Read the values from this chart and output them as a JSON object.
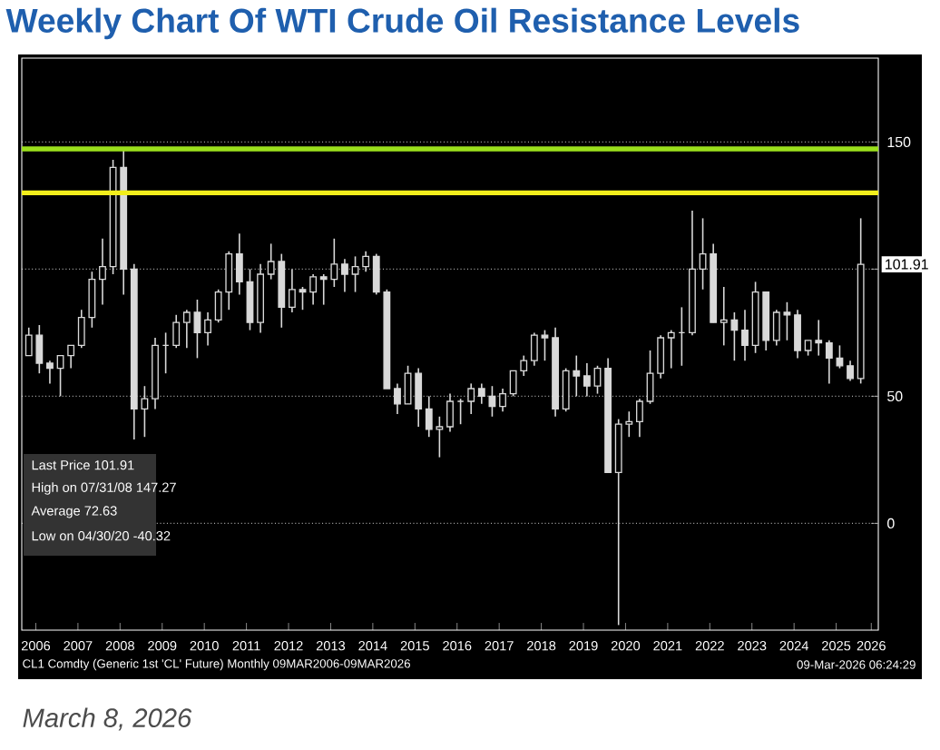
{
  "chart_data": {
    "type": "candlestick",
    "title": "Weekly Chart Of WTI Crude Oil Resistance Levels",
    "x": [
      "2006-05",
      "2006-08",
      "2006-11",
      "2007-02",
      "2007-05",
      "2007-08",
      "2007-11",
      "2008-02",
      "2008-05",
      "2008-08",
      "2008-11",
      "2009-02",
      "2009-05",
      "2009-08",
      "2009-11",
      "2010-02",
      "2010-05",
      "2010-08",
      "2010-11",
      "2011-02",
      "2011-05",
      "2011-08",
      "2011-11",
      "2012-02",
      "2012-05",
      "2012-08",
      "2012-11",
      "2013-02",
      "2013-05",
      "2013-08",
      "2013-11",
      "2014-02",
      "2014-05",
      "2014-08",
      "2014-11",
      "2015-02",
      "2015-05",
      "2015-08",
      "2015-11",
      "2016-02",
      "2016-05",
      "2016-08",
      "2016-11",
      "2017-02",
      "2017-05",
      "2017-08",
      "2017-11",
      "2018-02",
      "2018-05",
      "2018-08",
      "2018-11",
      "2019-02",
      "2019-05",
      "2019-08",
      "2019-11",
      "2020-02",
      "2020-05",
      "2020-08",
      "2020-11",
      "2021-02",
      "2021-05",
      "2021-08",
      "2021-11",
      "2022-02",
      "2022-05",
      "2022-08",
      "2022-11",
      "2023-02",
      "2023-05",
      "2023-08",
      "2023-11",
      "2024-02",
      "2024-05",
      "2024-08",
      "2024-11",
      "2025-02",
      "2025-05",
      "2025-08",
      "2025-11",
      "2026-02"
    ],
    "ohlc": [
      [
        66,
        77,
        66,
        74
      ],
      [
        74,
        78,
        59,
        63
      ],
      [
        63,
        64,
        55,
        61
      ],
      [
        61,
        66,
        50,
        66
      ],
      [
        66,
        70,
        61,
        70
      ],
      [
        70,
        84,
        69,
        81
      ],
      [
        81,
        99,
        77,
        96
      ],
      [
        96,
        112,
        86,
        101
      ],
      [
        101,
        143,
        98,
        140
      ],
      [
        140,
        147,
        90,
        100
      ],
      [
        100,
        102,
        33,
        45
      ],
      [
        45,
        54,
        34,
        49
      ],
      [
        49,
        73,
        45,
        70
      ],
      [
        70,
        75,
        59,
        70
      ],
      [
        70,
        82,
        69,
        79
      ],
      [
        79,
        84,
        69,
        83
      ],
      [
        83,
        88,
        65,
        75
      ],
      [
        75,
        83,
        70,
        80
      ],
      [
        80,
        92,
        79,
        91
      ],
      [
        91,
        107,
        84,
        106
      ],
      [
        106,
        114,
        90,
        95
      ],
      [
        95,
        100,
        76,
        79
      ],
      [
        79,
        102,
        75,
        98
      ],
      [
        98,
        110,
        96,
        103
      ],
      [
        103,
        106,
        77,
        85
      ],
      [
        85,
        100,
        83,
        92
      ],
      [
        92,
        93,
        84,
        91
      ],
      [
        91,
        98,
        86,
        97
      ],
      [
        97,
        98,
        86,
        96
      ],
      [
        96,
        112,
        93,
        102
      ],
      [
        102,
        104,
        91,
        98
      ],
      [
        98,
        105,
        91,
        101
      ],
      [
        101,
        107,
        99,
        105
      ],
      [
        105,
        106,
        90,
        91
      ],
      [
        91,
        92,
        53,
        53
      ],
      [
        53,
        55,
        43,
        47
      ],
      [
        47,
        62,
        47,
        59
      ],
      [
        59,
        61,
        38,
        45
      ],
      [
        45,
        50,
        34,
        37
      ],
      [
        37,
        42,
        26,
        38
      ],
      [
        38,
        51,
        36,
        48
      ],
      [
        48,
        49,
        39,
        48
      ],
      [
        48,
        55,
        43,
        53
      ],
      [
        53,
        55,
        47,
        50
      ],
      [
        50,
        54,
        42,
        46
      ],
      [
        46,
        53,
        44,
        51
      ],
      [
        51,
        60,
        50,
        60
      ],
      [
        60,
        66,
        58,
        64
      ],
      [
        64,
        75,
        62,
        74
      ],
      [
        74,
        76,
        64,
        73
      ],
      [
        73,
        77,
        42,
        45
      ],
      [
        45,
        61,
        44,
        60
      ],
      [
        60,
        66,
        50,
        58
      ],
      [
        58,
        63,
        50,
        54
      ],
      [
        54,
        62,
        51,
        61
      ],
      [
        61,
        65,
        20,
        20
      ],
      [
        20,
        41,
        -40,
        39
      ],
      [
        39,
        44,
        34,
        40
      ],
      [
        40,
        49,
        34,
        48
      ],
      [
        48,
        68,
        47,
        59
      ],
      [
        59,
        74,
        57,
        73
      ],
      [
        73,
        76,
        61,
        75
      ],
      [
        75,
        85,
        62,
        75
      ],
      [
        75,
        123,
        74,
        100
      ],
      [
        100,
        120,
        92,
        106
      ],
      [
        106,
        110,
        79,
        79
      ],
      [
        79,
        93,
        70,
        80
      ],
      [
        80,
        83,
        64,
        76
      ],
      [
        76,
        84,
        64,
        70
      ],
      [
        70,
        95,
        67,
        91
      ],
      [
        91,
        91,
        68,
        72
      ],
      [
        72,
        84,
        70,
        83
      ],
      [
        83,
        87,
        72,
        82
      ],
      [
        82,
        84,
        65,
        68
      ],
      [
        68,
        72,
        66,
        72
      ],
      [
        72,
        80,
        66,
        71
      ],
      [
        71,
        72,
        55,
        65
      ],
      [
        65,
        70,
        61,
        62
      ],
      [
        62,
        64,
        56,
        57
      ],
      [
        57,
        120,
        55,
        101.91
      ]
    ],
    "color": "#d9d9d9",
    "xlim": [
      "2006-03",
      "2026-07"
    ],
    "xticks": [
      {
        "value": "2006-07",
        "label": "2006"
      },
      {
        "value": "2007-07",
        "label": "2007"
      },
      {
        "value": "2008-07",
        "label": "2008"
      },
      {
        "value": "2009-07",
        "label": "2009"
      },
      {
        "value": "2010-07",
        "label": "2010"
      },
      {
        "value": "2011-07",
        "label": "2011"
      },
      {
        "value": "2012-07",
        "label": "2012"
      },
      {
        "value": "2013-07",
        "label": "2013"
      },
      {
        "value": "2014-07",
        "label": "2014"
      },
      {
        "value": "2015-07",
        "label": "2015"
      },
      {
        "value": "2016-07",
        "label": "2016"
      },
      {
        "value": "2017-07",
        "label": "2017"
      },
      {
        "value": "2018-07",
        "label": "2018"
      },
      {
        "value": "2019-07",
        "label": "2019"
      },
      {
        "value": "2020-07",
        "label": "2020"
      },
      {
        "value": "2021-07",
        "label": "2021"
      },
      {
        "value": "2022-07",
        "label": "2022"
      },
      {
        "value": "2023-07",
        "label": "2023"
      },
      {
        "value": "2024-07",
        "label": "2024"
      },
      {
        "value": "2025-07",
        "label": "2025"
      },
      {
        "value": "2026-05",
        "label": "2026"
      }
    ],
    "ylim": [
      -42,
      183
    ],
    "yticks": [
      0,
      50,
      {
        "value": 100,
        "label": null
      },
      150
    ],
    "grid": "y",
    "ref_lines": [
      {
        "axis": "y",
        "value": 147.27,
        "color": "#9be01c"
      },
      {
        "axis": "y",
        "value": 130,
        "color": "#f2ee1c"
      }
    ],
    "annotations": [
      "Last Price 101.91",
      "High on 07/31/08 147.27",
      "Average 72.63",
      "Low on 04/30/20 -40.32",
      {
        "text": "101.91",
        "x": "2026-03",
        "y": 101.91
      },
      "CL1 Comdty (Generic 1st 'CL' Future) Monthly 09MAR2006-09MAR2026",
      "09-Mar-2026 06:24:29",
      "March 8, 2026"
    ]
  }
}
